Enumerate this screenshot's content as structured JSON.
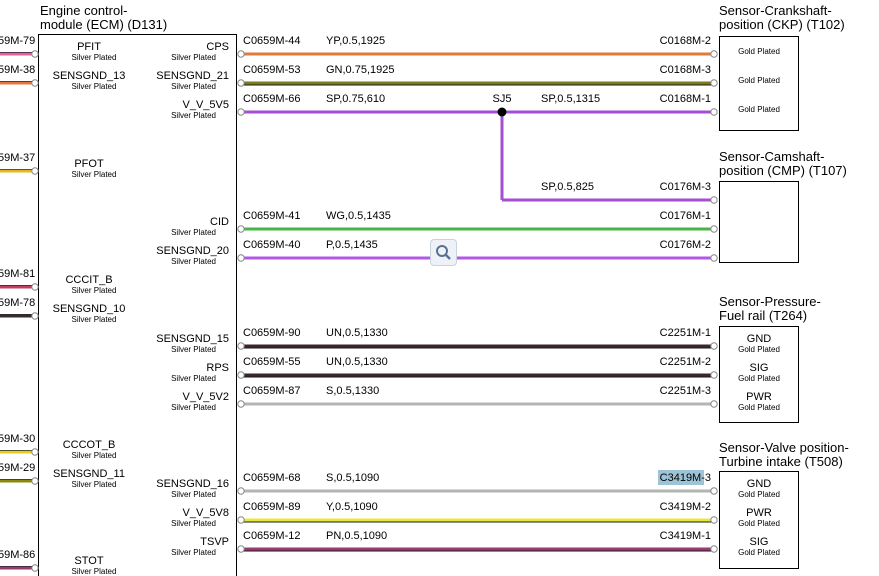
{
  "ecm": {
    "title_line1": "Engine control-",
    "title_line2": "module (ECM) (D131)",
    "plating": "Silver Plated",
    "left_pins": [
      "PFIT",
      "SENSGND_13",
      "PFOT",
      "CCCIT_B",
      "SENSGND_10",
      "CCCOT_B",
      "SENSGND_11",
      "STOT"
    ],
    "right_pins": [
      "CPS",
      "SENSGND_21",
      "V_V_5V5",
      "CID",
      "SENSGND_20",
      "SENSGND_15",
      "RPS",
      "V_V_5V2",
      "SENSGND_16",
      "V_V_5V8",
      "TSVP"
    ]
  },
  "left_stubs": [
    "59M-79",
    "59M-38",
    "59M-37",
    "59M-81",
    "59M-78",
    "59M-30",
    "59M-29",
    "59M-86"
  ],
  "wires": [
    {
      "from": "C0659M-44",
      "spec": "YP,0.5,1925",
      "to": "C0168M-2",
      "color": "#e07a3c"
    },
    {
      "from": "C0659M-53",
      "spec": "GN,0.75,1925",
      "to": "C0168M-3",
      "color": "#7a7a1e"
    },
    {
      "from": "C0659M-66",
      "spec": "SP,0.75,610",
      "to": "C0168M-1",
      "spec2": "SP,0.5,1315",
      "color": "#a64dd6"
    },
    {
      "from": "",
      "spec": "SP,0.5,825",
      "to": "C0176M-3",
      "color": "#a64dd6"
    },
    {
      "from": "C0659M-41",
      "spec": "WG,0.5,1435",
      "to": "C0176M-1",
      "color": "#45b545"
    },
    {
      "from": "C0659M-40",
      "spec": "P,0.5,1435",
      "to": "C0176M-2",
      "color": "#b158e6"
    },
    {
      "from": "C0659M-90",
      "spec": "UN,0.5,1330",
      "to": "C2251M-1",
      "color": "#3a2630"
    },
    {
      "from": "C0659M-55",
      "spec": "UN,0.5,1330",
      "to": "C2251M-2",
      "color": "#3a2630"
    },
    {
      "from": "C0659M-87",
      "spec": "S,0.5,1330",
      "to": "C2251M-3",
      "color": "#b4b4b4"
    },
    {
      "from": "C0659M-68",
      "spec": "S,0.5,1090",
      "to": "C3419M-3",
      "color": "#b4b4b4"
    },
    {
      "from": "C0659M-89",
      "spec": "Y,0.5,1090",
      "to": "C3419M-2",
      "color": "#e8e83a"
    },
    {
      "from": "C0659M-12",
      "spec": "PN,0.5,1090",
      "to": "C3419M-1",
      "color": "#9a3a72"
    }
  ],
  "splice": {
    "name": "SJ5"
  },
  "sensors": [
    {
      "line1": "Sensor-Crankshaft-",
      "line2": "position (CKP) (T102)",
      "pins": [
        "",
        "",
        ""
      ],
      "plating": [
        "Gold Plated",
        "Gold Plated",
        "Gold Plated"
      ]
    },
    {
      "line1": "Sensor-Camshaft-",
      "line2": "position (CMP) (T107)",
      "pins": [],
      "plating": []
    },
    {
      "line1": "Sensor-Pressure-",
      "line2": "Fuel rail (T264)",
      "pins": [
        "GND",
        "SIG",
        "PWR"
      ],
      "plating": [
        "Gold Plated",
        "Gold Plated",
        "Gold Plated"
      ]
    },
    {
      "line1": "Sensor-Valve position-",
      "line2": "Turbine intake (T508)",
      "pins": [
        "GND",
        "PWR",
        "SIG"
      ],
      "plating": [
        "Gold Plated",
        "Gold Plated",
        "Gold Plated"
      ]
    }
  ],
  "colors": {
    "left_stub_colors": [
      "#e060a0",
      "#e07a3c",
      "#e6b820",
      "#c04060",
      "#3a2a30",
      "#e0d020",
      "#8a8a10",
      "#9a3a72"
    ],
    "highlight": "#9fc3d6"
  },
  "icons": {
    "zoom": "magnifier-icon"
  }
}
